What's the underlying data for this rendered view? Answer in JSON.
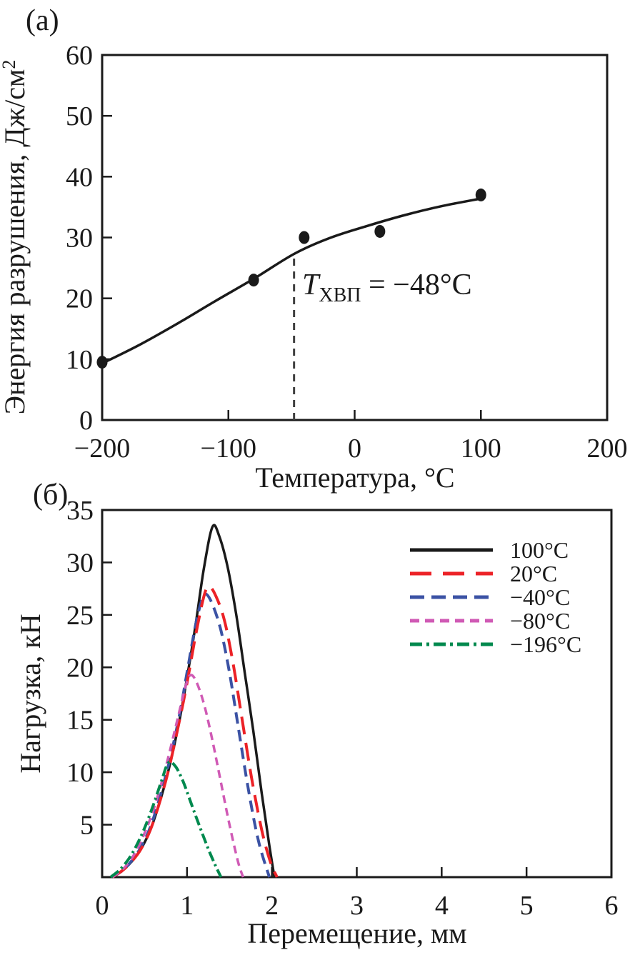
{
  "figure": {
    "panel_a_label": "(а)",
    "panel_b_label": "(б)"
  },
  "chart_data": [
    {
      "id": "a",
      "type": "scatter",
      "xlabel": "Температура, °С",
      "ylabel": "Энергия разрушения, Дж/см",
      "ylabel_sup": "2",
      "xlim": [
        -200,
        200
      ],
      "ylim": [
        0,
        60
      ],
      "grid": false,
      "xticks": [
        {
          "v": -200,
          "label": "−200"
        },
        {
          "v": -100,
          "label": "−100"
        },
        {
          "v": 0,
          "label": "0"
        },
        {
          "v": 100,
          "label": "100"
        },
        {
          "v": 200,
          "label": "200"
        }
      ],
      "yticks": [
        {
          "v": 0,
          "label": "0"
        },
        {
          "v": 10,
          "label": "10"
        },
        {
          "v": 20,
          "label": "20"
        },
        {
          "v": 30,
          "label": "30"
        },
        {
          "v": 40,
          "label": "40"
        },
        {
          "v": 50,
          "label": "50"
        },
        {
          "v": 60,
          "label": "60"
        }
      ],
      "points": [
        [
          -200,
          9.5
        ],
        [
          -80,
          23
        ],
        [
          -40,
          30
        ],
        [
          20,
          31
        ],
        [
          100,
          37
        ]
      ],
      "fit_curve": [
        [
          -200,
          9.3
        ],
        [
          -170,
          12.4
        ],
        [
          -140,
          15.9
        ],
        [
          -110,
          19.6
        ],
        [
          -80,
          23.2
        ],
        [
          -48,
          27.3
        ],
        [
          -20,
          29.9
        ],
        [
          10,
          31.9
        ],
        [
          40,
          33.7
        ],
        [
          70,
          35.2
        ],
        [
          100,
          36.4
        ]
      ],
      "marker_color": "#1a1a1a",
      "line_color": "#1a1a1a",
      "annotation": {
        "var": "T",
        "sub": "ХВП",
        "rest": " = −48°С",
        "x": -48,
        "line_top": 27.3,
        "line_color": "#3f3f3f"
      }
    },
    {
      "id": "b",
      "type": "line",
      "xlabel": "Перемещение, мм",
      "ylabel": "Нагрузка, кН",
      "xlim": [
        0,
        6
      ],
      "ylim": [
        0,
        35
      ],
      "grid": false,
      "legend_position": "top-right",
      "xticks": [
        {
          "v": 0,
          "label": "0"
        },
        {
          "v": 1,
          "label": "1"
        },
        {
          "v": 2,
          "label": "2"
        },
        {
          "v": 3,
          "label": "3"
        },
        {
          "v": 4,
          "label": "4"
        },
        {
          "v": 5,
          "label": "5"
        },
        {
          "v": 6,
          "label": "6"
        }
      ],
      "yticks": [
        {
          "v": 5,
          "label": "5"
        },
        {
          "v": 10,
          "label": "10"
        },
        {
          "v": 15,
          "label": "15"
        },
        {
          "v": 20,
          "label": "20"
        },
        {
          "v": 25,
          "label": "25"
        },
        {
          "v": 30,
          "label": "30"
        },
        {
          "v": 35,
          "label": "35"
        }
      ],
      "series": [
        {
          "label": "100°С",
          "color": "#1a1a1a",
          "dash": "",
          "legend_dash": "",
          "width": 3.5,
          "points": [
            [
              0.12,
              0
            ],
            [
              0.25,
              0.7
            ],
            [
              0.38,
              1.8
            ],
            [
              0.48,
              3
            ],
            [
              0.6,
              5.2
            ],
            [
              0.76,
              9.5
            ],
            [
              0.9,
              14.5
            ],
            [
              1.0,
              19
            ],
            [
              1.1,
              24
            ],
            [
              1.2,
              29.5
            ],
            [
              1.3,
              33.4
            ],
            [
              1.38,
              32.5
            ],
            [
              1.48,
              29.5
            ],
            [
              1.58,
              25
            ],
            [
              1.68,
              19.5
            ],
            [
              1.78,
              14
            ],
            [
              1.88,
              8
            ],
            [
              1.97,
              3
            ],
            [
              2.03,
              0
            ]
          ]
        },
        {
          "label": "20°С",
          "color": "#ec2227",
          "dash": "25 12",
          "legend_dash": "30 16",
          "width": 4,
          "points": [
            [
              0.12,
              0
            ],
            [
              0.25,
              0.7
            ],
            [
              0.38,
              1.8
            ],
            [
              0.48,
              3
            ],
            [
              0.6,
              5.2
            ],
            [
              0.76,
              9.5
            ],
            [
              0.9,
              14.5
            ],
            [
              1.0,
              18.5
            ],
            [
              1.1,
              23
            ],
            [
              1.2,
              26.8
            ],
            [
              1.26,
              27.7
            ],
            [
              1.34,
              26.8
            ],
            [
              1.44,
              24.5
            ],
            [
              1.54,
              20.5
            ],
            [
              1.64,
              15.5
            ],
            [
              1.76,
              9.5
            ],
            [
              1.88,
              4.5
            ],
            [
              1.98,
              1.5
            ],
            [
              2.06,
              0
            ]
          ]
        },
        {
          "label": "−40°С",
          "color": "#3b52a4",
          "dash": "16 9",
          "legend_dash": "20 10",
          "width": 4,
          "points": [
            [
              0.12,
              0
            ],
            [
              0.25,
              0.7
            ],
            [
              0.38,
              1.9
            ],
            [
              0.48,
              3.2
            ],
            [
              0.6,
              5.5
            ],
            [
              0.76,
              10
            ],
            [
              0.9,
              15
            ],
            [
              1.0,
              19.5
            ],
            [
              1.1,
              24
            ],
            [
              1.17,
              26.3
            ],
            [
              1.22,
              27
            ],
            [
              1.3,
              26
            ],
            [
              1.4,
              23.5
            ],
            [
              1.5,
              19.5
            ],
            [
              1.6,
              14.5
            ],
            [
              1.72,
              8.5
            ],
            [
              1.84,
              3.5
            ],
            [
              1.97,
              0
            ]
          ]
        },
        {
          "label": "−80°С",
          "color": "#d05ab5",
          "dash": "11 7",
          "legend_dash": "13 8",
          "width": 3.5,
          "points": [
            [
              0.12,
              0
            ],
            [
              0.25,
              0.8
            ],
            [
              0.38,
              2.2
            ],
            [
              0.5,
              4.2
            ],
            [
              0.62,
              6.8
            ],
            [
              0.75,
              10.5
            ],
            [
              0.88,
              14.8
            ],
            [
              0.97,
              17.8
            ],
            [
              1.03,
              19.2
            ],
            [
              1.1,
              18.8
            ],
            [
              1.2,
              16.5
            ],
            [
              1.3,
              13
            ],
            [
              1.4,
              9
            ],
            [
              1.5,
              5
            ],
            [
              1.6,
              1.5
            ],
            [
              1.66,
              0
            ]
          ]
        },
        {
          "label": "−196°С",
          "color": "#00894e",
          "dash": "14 5 3 5",
          "legend_dash": "17 6 4 6",
          "width": 4,
          "points": [
            [
              0.1,
              0
            ],
            [
              0.22,
              0.8
            ],
            [
              0.35,
              2.2
            ],
            [
              0.48,
              4.3
            ],
            [
              0.6,
              6.8
            ],
            [
              0.7,
              9.2
            ],
            [
              0.78,
              10.9
            ],
            [
              0.86,
              10.6
            ],
            [
              0.95,
              9.2
            ],
            [
              1.05,
              7
            ],
            [
              1.15,
              4.8
            ],
            [
              1.25,
              2.7
            ],
            [
              1.33,
              1.2
            ],
            [
              1.4,
              0
            ]
          ]
        }
      ]
    }
  ]
}
